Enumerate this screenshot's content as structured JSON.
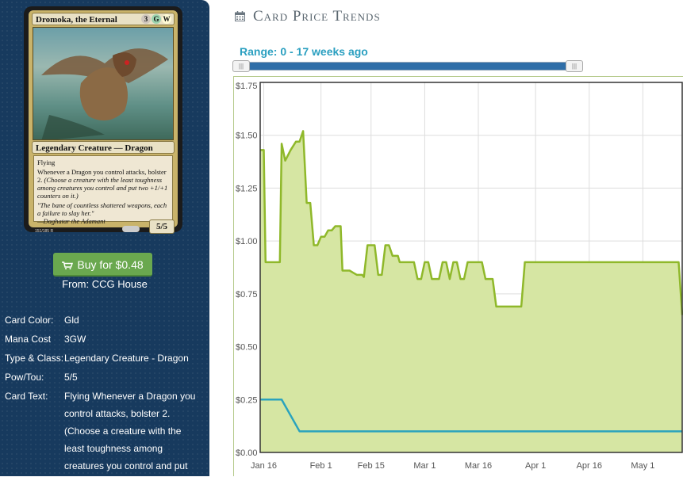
{
  "card": {
    "name": "Dromoka, the Eternal",
    "mana_cost_symbols": [
      "3",
      "G",
      "W"
    ],
    "type_line": "Legendary Creature — Dragon",
    "rules": {
      "keyword": "Flying",
      "ability": "Whenever a Dragon you control attacks, bolster 2.",
      "reminder": "(Choose a creature with the least toughness among creatures you control and put two +1/+1 counters on it.)"
    },
    "flavor": "\"The bane of countless shattered weapons, each a failure to slay her.\"",
    "flavor_attribution": "—Daghatar the Adamant",
    "power_toughness": "5/5",
    "collector_number": "151/185 R",
    "art_icon": "dragon-art-icon"
  },
  "buy": {
    "icon": "shopping-cart-icon",
    "label": "Buy for $0.48",
    "from": "From: CCG House",
    "color": "#6aa84f"
  },
  "details": [
    {
      "label": "Card Color:",
      "value": "Gld"
    },
    {
      "label": "Mana Cost",
      "value": "3GW"
    },
    {
      "label": "Type & Class:",
      "value": "Legendary Creature - Dragon"
    },
    {
      "label": "Pow/Tou:",
      "value": "5/5"
    },
    {
      "label": "Card Text:",
      "value": "Flying Whenever a Dragon you control attacks, bolster 2. (Choose a creature with the least toughness among creatures you control and put"
    }
  ],
  "trends": {
    "title": "Card Price Trends",
    "icon": "calendar-icon",
    "range_label": "Range: 0 - 17 weeks ago",
    "range_min_weeks": 0,
    "range_max_weeks": 17,
    "slider_handle_glyph": "|||"
  },
  "chart_data": {
    "type": "area",
    "ylim": [
      0,
      1.75
    ],
    "y_ticks": [
      "$0.00",
      "$0.25",
      "$0.50",
      "$0.75",
      "$1.00",
      "$1.25",
      "$1.50",
      "$1.75"
    ],
    "y_tick_values": [
      0,
      0.25,
      0.5,
      0.75,
      1.0,
      1.25,
      1.5,
      1.75
    ],
    "x_ticks": [
      "Jan 16",
      "Feb 1",
      "Feb 15",
      "Mar 1",
      "Mar 16",
      "Apr 1",
      "Apr 16",
      "May 1"
    ],
    "x_tick_days": [
      0,
      16,
      30,
      45,
      60,
      76,
      91,
      106
    ],
    "xlim_days": [
      -1,
      117
    ],
    "grid": true,
    "series": [
      {
        "color": "#8fb82a",
        "fill": "#d6e6a3",
        "points": [
          [
            -1,
            1.43
          ],
          [
            0,
            1.43
          ],
          [
            0.5,
            0.9
          ],
          [
            4.5,
            0.9
          ],
          [
            5,
            1.46
          ],
          [
            6,
            1.38
          ],
          [
            7.5,
            1.43
          ],
          [
            9,
            1.47
          ],
          [
            10,
            1.47
          ],
          [
            11,
            1.52
          ],
          [
            12,
            1.18
          ],
          [
            13,
            1.18
          ],
          [
            14,
            0.98
          ],
          [
            15,
            0.98
          ],
          [
            16,
            1.02
          ],
          [
            17,
            1.02
          ],
          [
            18,
            1.05
          ],
          [
            19,
            1.05
          ],
          [
            20,
            1.07
          ],
          [
            21.5,
            1.07
          ],
          [
            22,
            0.86
          ],
          [
            24,
            0.86
          ],
          [
            25,
            0.85
          ],
          [
            26,
            0.84
          ],
          [
            27.5,
            0.84
          ],
          [
            28,
            0.83
          ],
          [
            29,
            0.98
          ],
          [
            31,
            0.98
          ],
          [
            32,
            0.84
          ],
          [
            33,
            0.84
          ],
          [
            34,
            0.98
          ],
          [
            35,
            0.98
          ],
          [
            36,
            0.93
          ],
          [
            37.5,
            0.93
          ],
          [
            38,
            0.9
          ],
          [
            42,
            0.9
          ],
          [
            43,
            0.82
          ],
          [
            44,
            0.82
          ],
          [
            45,
            0.9
          ],
          [
            46,
            0.9
          ],
          [
            47,
            0.82
          ],
          [
            49,
            0.82
          ],
          [
            50,
            0.9
          ],
          [
            51,
            0.9
          ],
          [
            52,
            0.82
          ],
          [
            53,
            0.9
          ],
          [
            54,
            0.9
          ],
          [
            55,
            0.82
          ],
          [
            56,
            0.82
          ],
          [
            57,
            0.9
          ],
          [
            61,
            0.9
          ],
          [
            62,
            0.82
          ],
          [
            64,
            0.82
          ],
          [
            65,
            0.69
          ],
          [
            72,
            0.69
          ],
          [
            73,
            0.9
          ],
          [
            116,
            0.9
          ],
          [
            117,
            0.65
          ]
        ]
      },
      {
        "color": "#2ba3bd",
        "points": [
          [
            -1,
            0.25
          ],
          [
            5,
            0.25
          ],
          [
            10,
            0.1
          ],
          [
            117,
            0.1
          ]
        ]
      }
    ]
  }
}
